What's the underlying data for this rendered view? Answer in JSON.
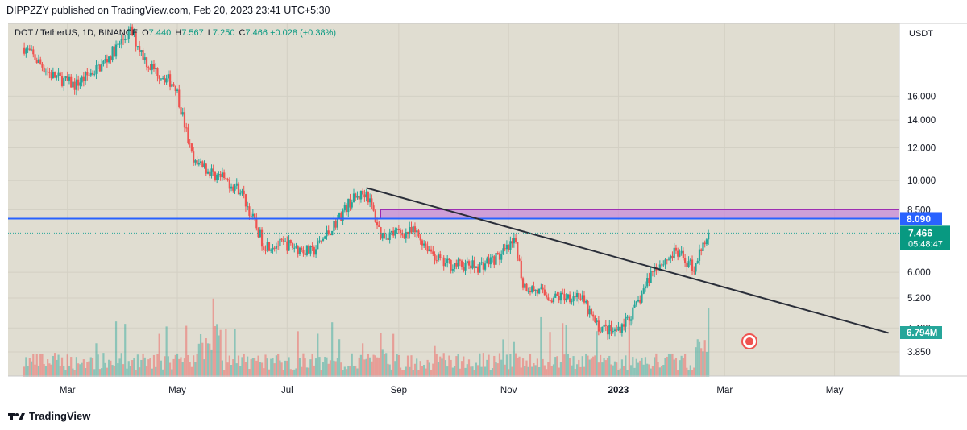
{
  "header": {
    "publisher_line": "DIPPZZY published on TradingView.com, Feb 20, 2023 23:41 UTC+5:30"
  },
  "legend": {
    "symbol": "DOT / TetherUS, 1D, BINANCE",
    "o_label": "O",
    "o_value": "7.440",
    "h_label": "H",
    "h_value": "7.567",
    "l_label": "L",
    "l_value": "7.250",
    "c_label": "C",
    "c_value": "7.466",
    "change": "+0.028 (+0.38%)"
  },
  "footer": {
    "brand": "TradingView"
  },
  "colors": {
    "background": "#e0ddd1",
    "up": "#26a69a",
    "down": "#ef5350",
    "hline": "#2962ff",
    "zone": "#c889d9",
    "trend": "#2a2e39"
  },
  "chart_data": {
    "type": "candlestick",
    "scale": "log",
    "currency_label": "USDT",
    "y_ticks": [
      "16.000",
      "14.000",
      "12.000",
      "10.000",
      "8.500",
      "6.000",
      "5.200",
      "4.400",
      "3.850"
    ],
    "x_ticks": [
      "Mar",
      "May",
      "Jul",
      "Sep",
      "Nov",
      "2023",
      "Mar",
      "May"
    ],
    "ylim": [
      3.6,
      24
    ],
    "last_close": "7.466",
    "countdown": "05:48:47",
    "volume_label": "6.794M",
    "horizontal_line": {
      "value": 8.09,
      "label": "8.090"
    },
    "resistance_zone": {
      "from": 8.1,
      "to": 8.5,
      "start": "2022-08-22",
      "end": "2023-05-31"
    },
    "trendline": {
      "start": {
        "date": "2022-08-14",
        "price": 9.6
      },
      "end": {
        "date": "2023-05-31",
        "price": 4.28
      }
    },
    "price_path": [
      [
        "2022-02-05",
        21.0
      ],
      [
        "2022-02-20",
        18.0
      ],
      [
        "2022-03-05",
        17.0
      ],
      [
        "2022-03-20",
        19.0
      ],
      [
        "2022-04-05",
        23.0
      ],
      [
        "2022-04-15",
        19.0
      ],
      [
        "2022-04-30",
        17.0
      ],
      [
        "2022-05-10",
        11.0
      ],
      [
        "2022-05-20",
        10.5
      ],
      [
        "2022-06-05",
        9.5
      ],
      [
        "2022-06-18",
        7.0
      ],
      [
        "2022-07-01",
        7.0
      ],
      [
        "2022-07-15",
        6.7
      ],
      [
        "2022-07-25",
        7.6
      ],
      [
        "2022-08-05",
        8.9
      ],
      [
        "2022-08-14",
        9.4
      ],
      [
        "2022-08-22",
        7.4
      ],
      [
        "2022-09-10",
        7.5
      ],
      [
        "2022-09-25",
        6.3
      ],
      [
        "2022-10-15",
        6.2
      ],
      [
        "2022-10-28",
        6.6
      ],
      [
        "2022-11-05",
        7.1
      ],
      [
        "2022-11-09",
        5.6
      ],
      [
        "2022-11-25",
        5.2
      ],
      [
        "2022-12-10",
        5.3
      ],
      [
        "2022-12-20",
        4.45
      ],
      [
        "2022-12-30",
        4.3
      ],
      [
        "2023-01-10",
        4.85
      ],
      [
        "2023-01-20",
        6.1
      ],
      [
        "2023-02-02",
        6.7
      ],
      [
        "2023-02-12",
        6.15
      ],
      [
        "2023-02-20",
        7.466
      ]
    ]
  }
}
